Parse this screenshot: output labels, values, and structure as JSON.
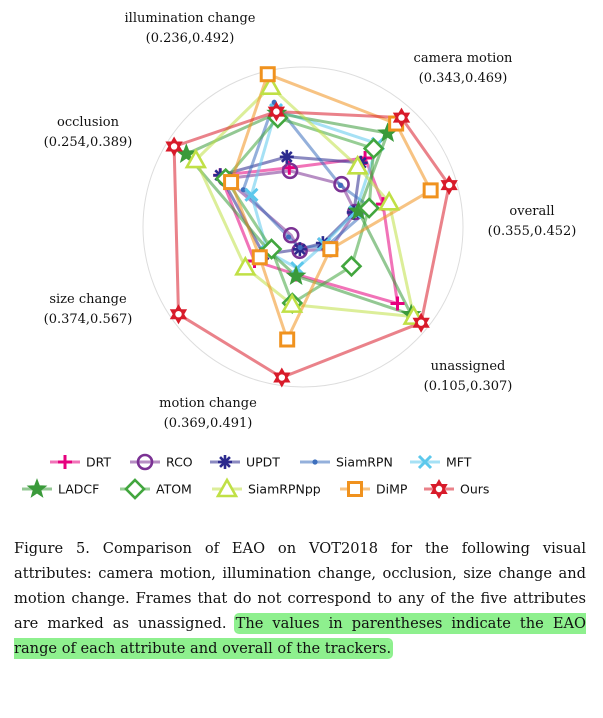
{
  "chart_data": {
    "type": "radar",
    "title": "",
    "axes": [
      {
        "name": "camera motion",
        "range": "(0.343,0.469)"
      },
      {
        "name": "overall",
        "range": "(0.355,0.452)"
      },
      {
        "name": "unassigned",
        "range": "(0.105,0.307)"
      },
      {
        "name": "motion change",
        "range": "(0.369,0.491)"
      },
      {
        "name": "size change",
        "range": "(0.374,0.567)"
      },
      {
        "name": "occlusion",
        "range": "(0.254,0.389)"
      },
      {
        "name": "illumination change",
        "range": "(0.236,0.492)"
      }
    ],
    "series": [
      {
        "name": "DRT",
        "color": "#e6007e",
        "marker": "plus",
        "values": [
          0.58,
          0.52,
          0.76,
          0.3,
          0.37,
          0.61,
          0.38
        ]
      },
      {
        "name": "RCO",
        "color": "#7b3294",
        "marker": "circle",
        "values": [
          0.36,
          0.34,
          0.22,
          0.15,
          0.09,
          0.57,
          0.36
        ]
      },
      {
        "name": "UPDT",
        "color": "#2c2a8e",
        "marker": "asterisk",
        "values": [
          0.54,
          0.33,
          0.16,
          0.14,
          0.3,
          0.61,
          0.45
        ]
      },
      {
        "name": "SiamRPN",
        "color": "#3d6fbd",
        "marker": "dot",
        "values": [
          0.35,
          0.44,
          0.19,
          0.13,
          0.11,
          0.44,
          0.8
        ]
      },
      {
        "name": "SiamRPN",
        "color": "#3d6fbd",
        "marker": "dot",
        "values": [
          0.35,
          0.44,
          0.19,
          0.13,
          0.11,
          0.44,
          0.8
        ]
      },
      {
        "name": "MFT",
        "color": "#5cc8ec",
        "marker": "cross",
        "values": [
          0.7,
          0.34,
          0.17,
          0.26,
          0.27,
          0.38,
          0.75
        ]
      },
      {
        "name": "LADCF",
        "color": "#3a9a3a",
        "marker": "star",
        "values": [
          0.79,
          0.36,
          0.87,
          0.31,
          0.26,
          0.86,
          0.73
        ]
      },
      {
        "name": "ATOM",
        "color": "#42a63e",
        "marker": "diamond",
        "values": [
          0.66,
          0.43,
          0.39,
          0.48,
          0.24,
          0.57,
          0.7
        ]
      },
      {
        "name": "SiamRPNpp",
        "color": "#c0e046",
        "marker": "triangle",
        "values": [
          0.51,
          0.56,
          0.89,
          0.49,
          0.44,
          0.79,
          0.9
        ]
      },
      {
        "name": "DiMP",
        "color": "#f0921e",
        "marker": "square",
        "values": [
          0.87,
          0.83,
          0.22,
          0.71,
          0.33,
          0.53,
          0.98
        ]
      },
      {
        "name": "Ours",
        "color": "#d81b2a",
        "marker": "hexstar",
        "values": [
          0.92,
          0.95,
          0.95,
          0.95,
          0.95,
          0.95,
          0.74
        ]
      }
    ]
  },
  "caption": {
    "plain": "Figure 5. Comparison of EAO on VOT2018 for the following visual attributes: camera motion, illumination change, occlusion, size change and motion change. Frames that do not correspond to any of the five attributes are marked as unassigned. ",
    "highlighted": "The values in parentheses indicate the EAO range of each attribute and overall of the trackers."
  }
}
